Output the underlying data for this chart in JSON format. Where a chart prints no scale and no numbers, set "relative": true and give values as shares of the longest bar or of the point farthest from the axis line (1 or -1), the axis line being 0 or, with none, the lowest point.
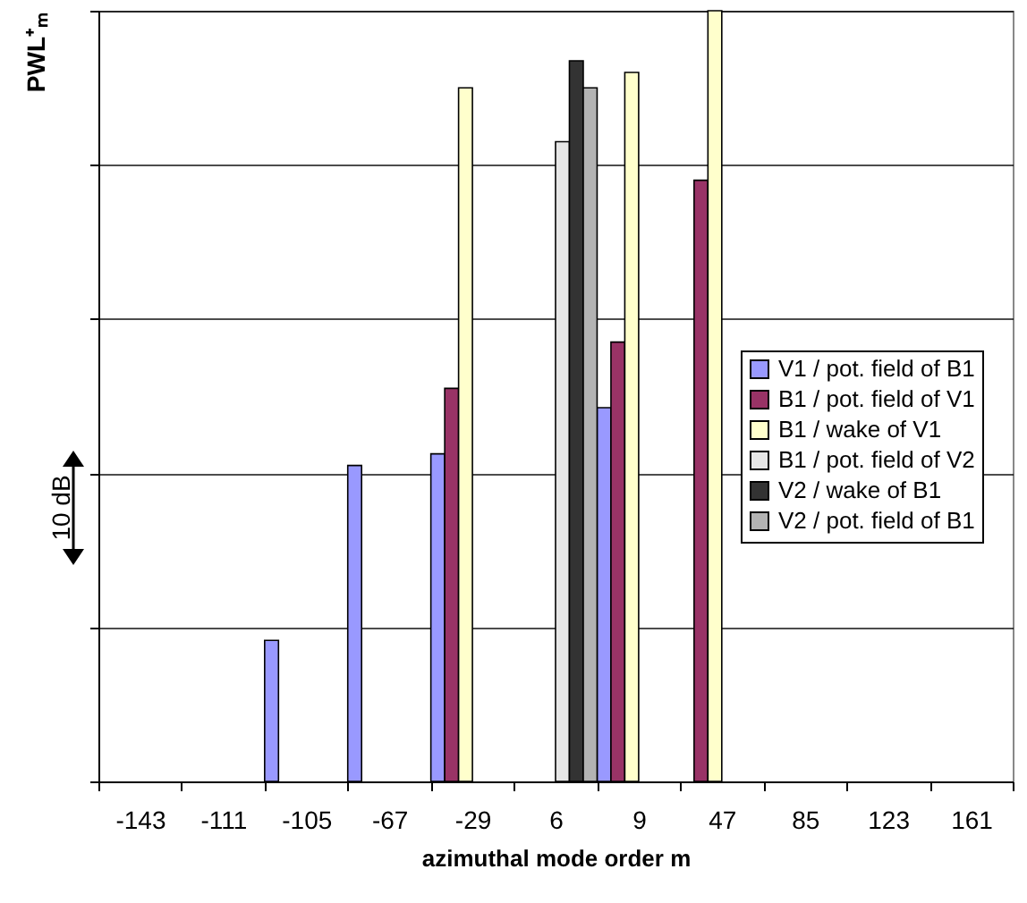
{
  "chart_data": {
    "type": "bar",
    "relative": true,
    "xlabel": "azimuthal mode order m",
    "ylabel": "PWL⁺ₘ",
    "categories": [
      "-143",
      "-111",
      "-105",
      "-67",
      "-29",
      "6",
      "9",
      "47",
      "85",
      "123",
      "161"
    ],
    "series": [
      {
        "name": "V1 / pot. field of B1",
        "color": "#9999ff",
        "values": [
          null,
          null,
          0.183,
          0.41,
          0.425,
          null,
          0.485,
          null,
          null,
          null,
          null
        ]
      },
      {
        "name": "B1 / pot. field of V1",
        "color": "#993366",
        "values": [
          null,
          null,
          null,
          null,
          0.51,
          null,
          0.57,
          0.78,
          null,
          null,
          null
        ]
      },
      {
        "name": "B1 / wake of V1",
        "color": "#ffffcc",
        "values": [
          null,
          null,
          null,
          null,
          0.9,
          null,
          0.92,
          1,
          null,
          null,
          null
        ]
      },
      {
        "name": "B1 / pot. field of V2",
        "color": "#e6e6e6",
        "values": [
          null,
          null,
          null,
          null,
          null,
          0.83,
          null,
          null,
          null,
          null,
          null
        ]
      },
      {
        "name": "V2 / wake of B1",
        "color": "#333333",
        "values": [
          null,
          null,
          null,
          null,
          null,
          0.935,
          null,
          null,
          null,
          null,
          null
        ]
      },
      {
        "name": "V2 / pot. field of B1",
        "color": "#b3b3b3",
        "values": [
          null,
          null,
          null,
          null,
          null,
          0.9,
          null,
          null,
          null,
          null,
          null
        ]
      }
    ],
    "annotations": [
      "10 dB"
    ],
    "grid": "y",
    "legend": "right"
  }
}
